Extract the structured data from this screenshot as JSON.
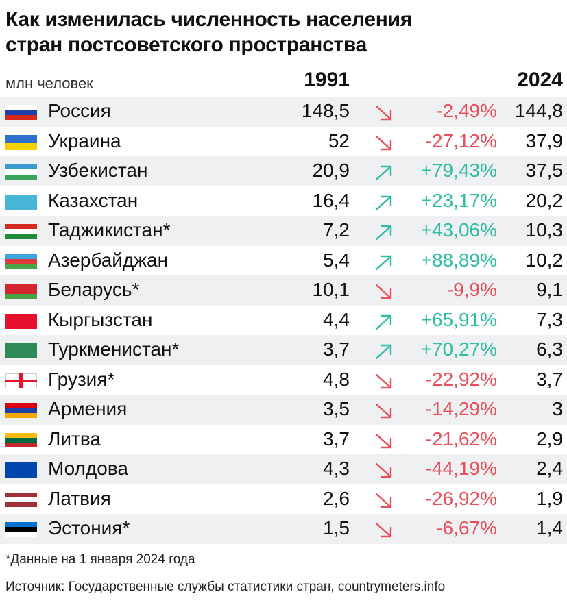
{
  "title_line1": "Как изменилась численность населения",
  "title_line2": "стран постсоветского пространства",
  "unit": "млн человек",
  "footnote": "*Данные на 1 января 2024 года",
  "source": "Источник: Государственные службы статистики стран, countrymeters.info",
  "chart_data": {
    "type": "table",
    "columns": [
      "",
      "1991",
      "",
      "2024"
    ],
    "up_color": "#2fbda6",
    "down_color": "#e8505b",
    "rows": [
      {
        "country": "Россия",
        "flag": [
          "#ffffff",
          "#1c3fa8",
          "#d52b1e"
        ],
        "v1991": "148,5",
        "direction": "down",
        "change": "-2,49%",
        "v2024": "144,8"
      },
      {
        "country": "Украина",
        "flag": [
          "#2f6fc9",
          "#f5d000"
        ],
        "v1991": "52",
        "direction": "down",
        "change": "-27,12%",
        "v2024": "37,9"
      },
      {
        "country": "Узбекистан",
        "flag": [
          "#3a9bd5",
          "#ffffff",
          "#3aa35a"
        ],
        "v1991": "20,9",
        "direction": "up",
        "change": "+79,43%",
        "v2024": "37,5"
      },
      {
        "country": "Казахстан",
        "flag": [
          "#47b6d6"
        ],
        "v1991": "16,4",
        "direction": "up",
        "change": "+23,17%",
        "v2024": "20,2"
      },
      {
        "country": "Таджикистан*",
        "flag": [
          "#d52b1e",
          "#ffffff",
          "#1f8a3a"
        ],
        "v1991": "7,2",
        "direction": "up",
        "change": "+43,06%",
        "v2024": "10,3"
      },
      {
        "country": "Азербайджан",
        "flag": [
          "#3aa7d8",
          "#e03a3e",
          "#4aa54a"
        ],
        "v1991": "5,4",
        "direction": "up",
        "change": "+88,89%",
        "v2024": "10,2"
      },
      {
        "country": "Беларусь*",
        "flag": [
          "#d22730",
          "#d22730",
          "#4aa246"
        ],
        "v1991": "10,1",
        "direction": "down",
        "change": "-9,9%",
        "v2024": "9,1"
      },
      {
        "country": "Кыргызстан",
        "flag": [
          "#e8112d"
        ],
        "v1991": "4,4",
        "direction": "up",
        "change": "+65,91%",
        "v2024": "7,3"
      },
      {
        "country": "Туркменистан*",
        "flag": [
          "#2e8b57"
        ],
        "v1991": "3,7",
        "direction": "up",
        "change": "+70,27%",
        "v2024": "6,3"
      },
      {
        "country": "Грузия*",
        "flag": [
          "#ffffff"
        ],
        "v1991": "4,8",
        "direction": "down",
        "change": "-22,92%",
        "v2024": "3,7"
      },
      {
        "country": "Армения",
        "flag": [
          "#d90012",
          "#1e3fa8",
          "#f2a800"
        ],
        "v1991": "3,5",
        "direction": "down",
        "change": "-14,29%",
        "v2024": "3"
      },
      {
        "country": "Литва",
        "flag": [
          "#fdb913",
          "#006a44",
          "#c1272d"
        ],
        "v1991": "3,7",
        "direction": "down",
        "change": "-21,62%",
        "v2024": "2,9"
      },
      {
        "country": "Молдова",
        "flag": [
          "#0046ae"
        ],
        "v1991": "4,3",
        "direction": "down",
        "change": "-44,19%",
        "v2024": "2,4"
      },
      {
        "country": "Латвия",
        "flag": [
          "#9e3039",
          "#ffffff",
          "#9e3039"
        ],
        "v1991": "2,6",
        "direction": "down",
        "change": "-26,92%",
        "v2024": "1,9"
      },
      {
        "country": "Эстония*",
        "flag": [
          "#0072ce",
          "#000000",
          "#ffffff"
        ],
        "v1991": "1,5",
        "direction": "down",
        "change": "-6,67%",
        "v2024": "1,4"
      }
    ]
  }
}
